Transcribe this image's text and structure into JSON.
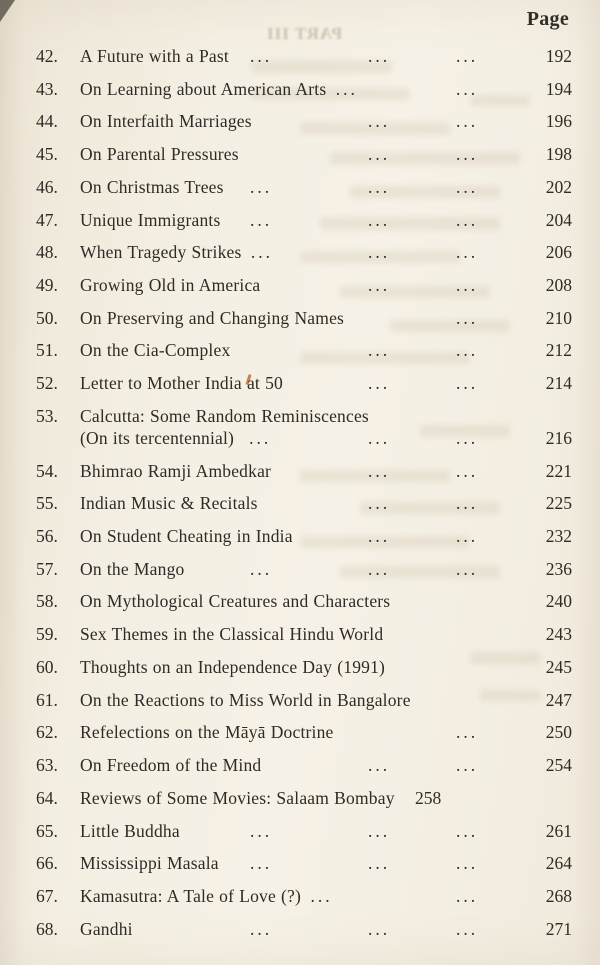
{
  "colors": {
    "page_bg": "#f3eee2",
    "ink": "#2e2b27",
    "ghost": "#a2957d"
  },
  "header": {
    "label": "Page"
  },
  "ghost": {
    "text": "PART III"
  },
  "dots_glyph": "...",
  "toc": {
    "entries": [
      {
        "num": "42.",
        "title": "A Future with a Past",
        "dots": [
          "c1",
          "c2",
          "c3"
        ],
        "page": "192"
      },
      {
        "num": "43.",
        "title": "On Learning about American Arts",
        "dots": [
          "tight",
          "c3"
        ],
        "page": "194"
      },
      {
        "num": "44.",
        "title": "On Interfaith Marriages",
        "dots": [
          "c2",
          "c3"
        ],
        "page": "196"
      },
      {
        "num": "45.",
        "title": "On Parental Pressures",
        "dots": [
          "c2",
          "c3"
        ],
        "page": "198"
      },
      {
        "num": "46.",
        "title": "On Christmas Trees",
        "dots": [
          "c1",
          "c2",
          "c3"
        ],
        "page": "202"
      },
      {
        "num": "47.",
        "title": "Unique Immigrants",
        "dots": [
          "c1",
          "c2",
          "c3"
        ],
        "page": "204"
      },
      {
        "num": "48.",
        "title": "When Tragedy Strikes",
        "dots": [
          "tight",
          "c2",
          "c3"
        ],
        "page": "206"
      },
      {
        "num": "49.",
        "title": "Growing Old in America",
        "dots": [
          "c2",
          "c3"
        ],
        "page": "208"
      },
      {
        "num": "50.",
        "title": "On Preserving and Changing Names",
        "dots": [
          "c3"
        ],
        "page": "210"
      },
      {
        "num": "51.",
        "title": "On the Cia-Complex",
        "dots": [
          "c2",
          "c3"
        ],
        "page": "212"
      },
      {
        "num": "52.",
        "title": "Letter to Mother India at 50",
        "dots": [
          "c2",
          "c3"
        ],
        "page": "214"
      },
      {
        "num": "53.",
        "title": "Calcutta: Some Random Reminiscences",
        "title2": "(On its tercentennial)",
        "dots2": [
          "inline",
          "c2",
          "c3"
        ],
        "page": "216"
      },
      {
        "num": "54.",
        "title": "Bhimrao Ramji Ambedkar",
        "dots": [
          "c2",
          "c3"
        ],
        "page": "221"
      },
      {
        "num": "55.",
        "title": "Indian Music & Recitals",
        "dots": [
          "c2",
          "c3"
        ],
        "page": "225"
      },
      {
        "num": "56.",
        "title": "On Student Cheating in India",
        "dots": [
          "c2",
          "c3"
        ],
        "page": "232"
      },
      {
        "num": "57.",
        "title": "On the Mango",
        "dots": [
          "c1",
          "c2",
          "c3"
        ],
        "page": "236"
      },
      {
        "num": "58.",
        "title": "On Mythological Creatures and Characters",
        "dots": [],
        "page": "240"
      },
      {
        "num": "59.",
        "title": "Sex Themes in the Classical Hindu World",
        "dots": [],
        "page": "243"
      },
      {
        "num": "60.",
        "title": "Thoughts on an Independence Day (1991)",
        "dots": [],
        "page": "245"
      },
      {
        "num": "61.",
        "title": "On the Reactions to Miss World in Bangalore",
        "dots": [],
        "page": "247"
      },
      {
        "num": "62.",
        "title": "Refelections on the Māyā Doctrine",
        "dots": [
          "c3"
        ],
        "page": "250"
      },
      {
        "num": "63.",
        "title": "On Freedom of the Mind",
        "dots": [
          "c2",
          "c3"
        ],
        "page": "254"
      },
      {
        "num": "64.",
        "title": "Reviews of Some Movies: Salaam Bombay",
        "dots": [],
        "page": "258",
        "page_inline": true
      },
      {
        "num": "65.",
        "title": "Little Buddha",
        "dots": [
          "c1",
          "c2",
          "c3"
        ],
        "page": "261"
      },
      {
        "num": "66.",
        "title": "Mississippi Masala",
        "dots": [
          "c1",
          "c2",
          "c3"
        ],
        "page": "264"
      },
      {
        "num": "67.",
        "title": "Kamasutra: A Tale of Love (?)",
        "dots": [
          "tight",
          "c3"
        ],
        "page": "268"
      },
      {
        "num": "68.",
        "title": "Gandhi",
        "dots": [
          "c1",
          "c2",
          "c3"
        ],
        "page": "271"
      }
    ]
  }
}
